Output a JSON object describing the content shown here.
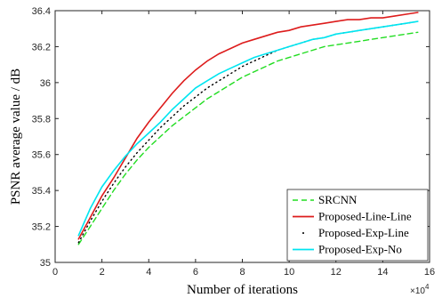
{
  "chart_data": {
    "type": "line",
    "xlabel": "Number of iterations",
    "ylabel": "PSNR average value / dB",
    "x_multiplier_base": "×10",
    "x_multiplier_exp": "4",
    "xlim": [
      0,
      160000
    ],
    "ylim": [
      35.0,
      36.4
    ],
    "xticks": [
      0,
      20000,
      40000,
      60000,
      80000,
      100000,
      120000,
      140000,
      160000
    ],
    "xtick_labels": [
      "0",
      "2",
      "4",
      "6",
      "8",
      "10",
      "12",
      "14",
      "16"
    ],
    "yticks": [
      35.0,
      35.2,
      35.4,
      35.6,
      35.8,
      36.0,
      36.2,
      36.4
    ],
    "ytick_labels": [
      "35",
      "35.2",
      "35.4",
      "35.6",
      "35.8",
      "36",
      "36.2",
      "36.4"
    ],
    "grid": false,
    "legend_position": "bottom-right",
    "x": [
      10000,
      15000,
      20000,
      25000,
      30000,
      35000,
      40000,
      45000,
      50000,
      55000,
      60000,
      65000,
      70000,
      75000,
      80000,
      85000,
      90000,
      95000,
      100000,
      105000,
      110000,
      115000,
      120000,
      125000,
      130000,
      135000,
      140000,
      145000,
      150000,
      155000
    ],
    "series": [
      {
        "name": "SRCNN",
        "color": "#22dd22",
        "style": "dashed",
        "values": [
          35.1,
          35.2,
          35.3,
          35.4,
          35.49,
          35.57,
          35.64,
          35.7,
          35.76,
          35.81,
          35.86,
          35.91,
          35.95,
          35.99,
          36.03,
          36.06,
          36.09,
          36.12,
          36.14,
          36.16,
          36.18,
          36.2,
          36.21,
          36.22,
          36.23,
          36.24,
          36.25,
          36.26,
          36.27,
          36.28
        ]
      },
      {
        "name": "Proposed-Line-Line",
        "color": "#dd1c1c",
        "style": "solid",
        "values": [
          35.13,
          35.25,
          35.37,
          35.47,
          35.58,
          35.69,
          35.78,
          35.86,
          35.94,
          36.01,
          36.07,
          36.12,
          36.16,
          36.19,
          36.22,
          36.24,
          36.26,
          36.28,
          36.29,
          36.31,
          36.32,
          36.33,
          36.34,
          36.35,
          36.35,
          36.36,
          36.36,
          36.37,
          36.38,
          36.39
        ]
      },
      {
        "name": "Proposed-Exp-Line",
        "color": "#000000",
        "style": "dotted",
        "values": [
          35.11,
          35.23,
          35.34,
          35.44,
          35.53,
          35.61,
          35.68,
          35.75,
          35.81,
          35.87,
          35.92,
          35.97,
          36.01,
          36.05,
          36.09,
          36.12,
          36.15,
          36.18,
          36.2,
          36.22,
          36.24,
          36.25,
          36.27,
          36.28,
          36.29,
          36.3,
          36.31,
          36.32,
          36.33,
          36.34
        ]
      },
      {
        "name": "Proposed-Exp-No",
        "color": "#00e5f0",
        "style": "solid",
        "values": [
          35.15,
          35.3,
          35.42,
          35.51,
          35.59,
          35.66,
          35.72,
          35.78,
          35.85,
          35.91,
          35.97,
          36.01,
          36.05,
          36.08,
          36.11,
          36.14,
          36.16,
          36.18,
          36.2,
          36.22,
          36.24,
          36.25,
          36.27,
          36.28,
          36.29,
          36.3,
          36.31,
          36.32,
          36.33,
          36.34
        ]
      }
    ]
  }
}
